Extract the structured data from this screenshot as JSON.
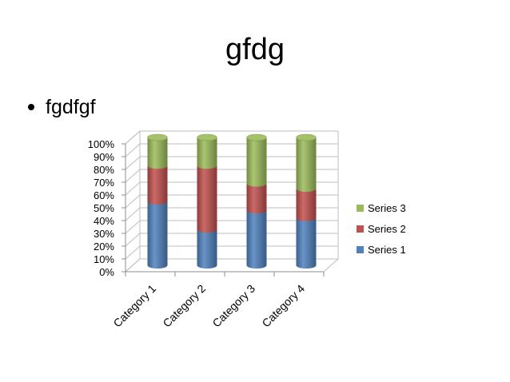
{
  "slide": {
    "title": "gfdg",
    "bullet": "fgdfgf"
  },
  "chart_data": {
    "type": "bar",
    "stacked": "100%",
    "style": "3d-cylinder",
    "title": "",
    "categories": [
      "Category 1",
      "Category 2",
      "Category 3",
      "Category 4"
    ],
    "series": [
      {
        "name": "Series 1",
        "values": [
          50,
          28,
          43,
          37
        ],
        "color": "#4F81BD"
      },
      {
        "name": "Series 2",
        "values": [
          28,
          50,
          21,
          23
        ],
        "color": "#C0504D"
      },
      {
        "name": "Series 3",
        "values": [
          22,
          22,
          36,
          40
        ],
        "color": "#9BBB59"
      }
    ],
    "ylim": [
      0,
      100
    ],
    "yticks": [
      "0%",
      "10%",
      "20%",
      "30%",
      "40%",
      "50%",
      "60%",
      "70%",
      "80%",
      "90%",
      "100%"
    ],
    "grid": true,
    "legend_position": "right"
  }
}
